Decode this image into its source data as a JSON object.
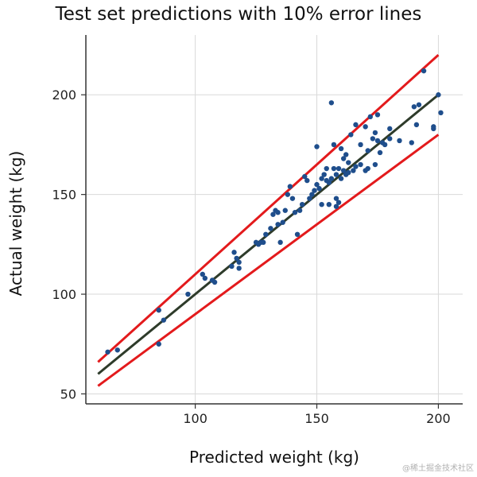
{
  "chart_data": {
    "type": "scatter",
    "title": "Test set predictions with 10% error lines",
    "xlabel": "Predicted weight (kg)",
    "ylabel": "Actual weight (kg)",
    "xlim": [
      55,
      210
    ],
    "ylim": [
      45,
      230
    ],
    "xticks": [
      100,
      150,
      200
    ],
    "yticks": [
      50,
      100,
      150,
      200
    ],
    "grid": true,
    "colors": {
      "points": "#1f4e8c",
      "error_lines": "#e31a1c",
      "fit_line": "#2e3b2a",
      "grid": "#d9d9d9",
      "axis": "#333333"
    },
    "fit_line": {
      "x": [
        60,
        200
      ],
      "y": [
        60,
        200
      ]
    },
    "upper_error_line": {
      "x": [
        60,
        200
      ],
      "y": [
        66,
        220
      ]
    },
    "lower_error_line": {
      "x": [
        60,
        200
      ],
      "y": [
        54,
        180
      ]
    },
    "points": [
      {
        "x": 64,
        "y": 71
      },
      {
        "x": 68,
        "y": 72
      },
      {
        "x": 85,
        "y": 92
      },
      {
        "x": 85,
        "y": 75
      },
      {
        "x": 87,
        "y": 87
      },
      {
        "x": 97,
        "y": 100
      },
      {
        "x": 103,
        "y": 110
      },
      {
        "x": 104,
        "y": 108
      },
      {
        "x": 107,
        "y": 107
      },
      {
        "x": 108,
        "y": 106
      },
      {
        "x": 115,
        "y": 114
      },
      {
        "x": 116,
        "y": 121
      },
      {
        "x": 117,
        "y": 118
      },
      {
        "x": 118,
        "y": 113
      },
      {
        "x": 118,
        "y": 116
      },
      {
        "x": 125,
        "y": 126
      },
      {
        "x": 126,
        "y": 125
      },
      {
        "x": 127,
        "y": 126
      },
      {
        "x": 128,
        "y": 126
      },
      {
        "x": 129,
        "y": 130
      },
      {
        "x": 131,
        "y": 133
      },
      {
        "x": 132,
        "y": 140
      },
      {
        "x": 133,
        "y": 142
      },
      {
        "x": 134,
        "y": 141
      },
      {
        "x": 134,
        "y": 135
      },
      {
        "x": 135,
        "y": 126
      },
      {
        "x": 136,
        "y": 136
      },
      {
        "x": 137,
        "y": 142
      },
      {
        "x": 138,
        "y": 150
      },
      {
        "x": 139,
        "y": 154
      },
      {
        "x": 140,
        "y": 148
      },
      {
        "x": 141,
        "y": 141
      },
      {
        "x": 142,
        "y": 130
      },
      {
        "x": 143,
        "y": 142
      },
      {
        "x": 144,
        "y": 145
      },
      {
        "x": 145,
        "y": 159
      },
      {
        "x": 146,
        "y": 157
      },
      {
        "x": 147,
        "y": 148
      },
      {
        "x": 148,
        "y": 150
      },
      {
        "x": 149,
        "y": 152
      },
      {
        "x": 150,
        "y": 174
      },
      {
        "x": 150,
        "y": 155
      },
      {
        "x": 151,
        "y": 153
      },
      {
        "x": 152,
        "y": 158
      },
      {
        "x": 152,
        "y": 145
      },
      {
        "x": 153,
        "y": 160
      },
      {
        "x": 154,
        "y": 157
      },
      {
        "x": 154,
        "y": 163
      },
      {
        "x": 155,
        "y": 145
      },
      {
        "x": 155,
        "y": 156
      },
      {
        "x": 156,
        "y": 196
      },
      {
        "x": 156,
        "y": 158
      },
      {
        "x": 157,
        "y": 163
      },
      {
        "x": 157,
        "y": 175
      },
      {
        "x": 158,
        "y": 160
      },
      {
        "x": 158,
        "y": 148
      },
      {
        "x": 158,
        "y": 144
      },
      {
        "x": 159,
        "y": 163
      },
      {
        "x": 159,
        "y": 146
      },
      {
        "x": 160,
        "y": 173
      },
      {
        "x": 160,
        "y": 158
      },
      {
        "x": 161,
        "y": 162
      },
      {
        "x": 161,
        "y": 168
      },
      {
        "x": 162,
        "y": 170
      },
      {
        "x": 162,
        "y": 160
      },
      {
        "x": 163,
        "y": 166
      },
      {
        "x": 163,
        "y": 161
      },
      {
        "x": 164,
        "y": 180
      },
      {
        "x": 165,
        "y": 162
      },
      {
        "x": 166,
        "y": 185
      },
      {
        "x": 166,
        "y": 164
      },
      {
        "x": 168,
        "y": 165
      },
      {
        "x": 168,
        "y": 175
      },
      {
        "x": 170,
        "y": 184
      },
      {
        "x": 170,
        "y": 162
      },
      {
        "x": 171,
        "y": 163
      },
      {
        "x": 171,
        "y": 172
      },
      {
        "x": 172,
        "y": 189
      },
      {
        "x": 173,
        "y": 178
      },
      {
        "x": 174,
        "y": 165
      },
      {
        "x": 174,
        "y": 181
      },
      {
        "x": 175,
        "y": 190
      },
      {
        "x": 175,
        "y": 177
      },
      {
        "x": 176,
        "y": 171
      },
      {
        "x": 177,
        "y": 176
      },
      {
        "x": 178,
        "y": 175
      },
      {
        "x": 180,
        "y": 183
      },
      {
        "x": 180,
        "y": 178
      },
      {
        "x": 184,
        "y": 177
      },
      {
        "x": 189,
        "y": 176
      },
      {
        "x": 190,
        "y": 194
      },
      {
        "x": 191,
        "y": 185
      },
      {
        "x": 192,
        "y": 195
      },
      {
        "x": 194,
        "y": 212
      },
      {
        "x": 198,
        "y": 184
      },
      {
        "x": 198,
        "y": 183
      },
      {
        "x": 200,
        "y": 200
      },
      {
        "x": 201,
        "y": 191
      }
    ]
  },
  "watermark": "@稀土掘金技术社区"
}
